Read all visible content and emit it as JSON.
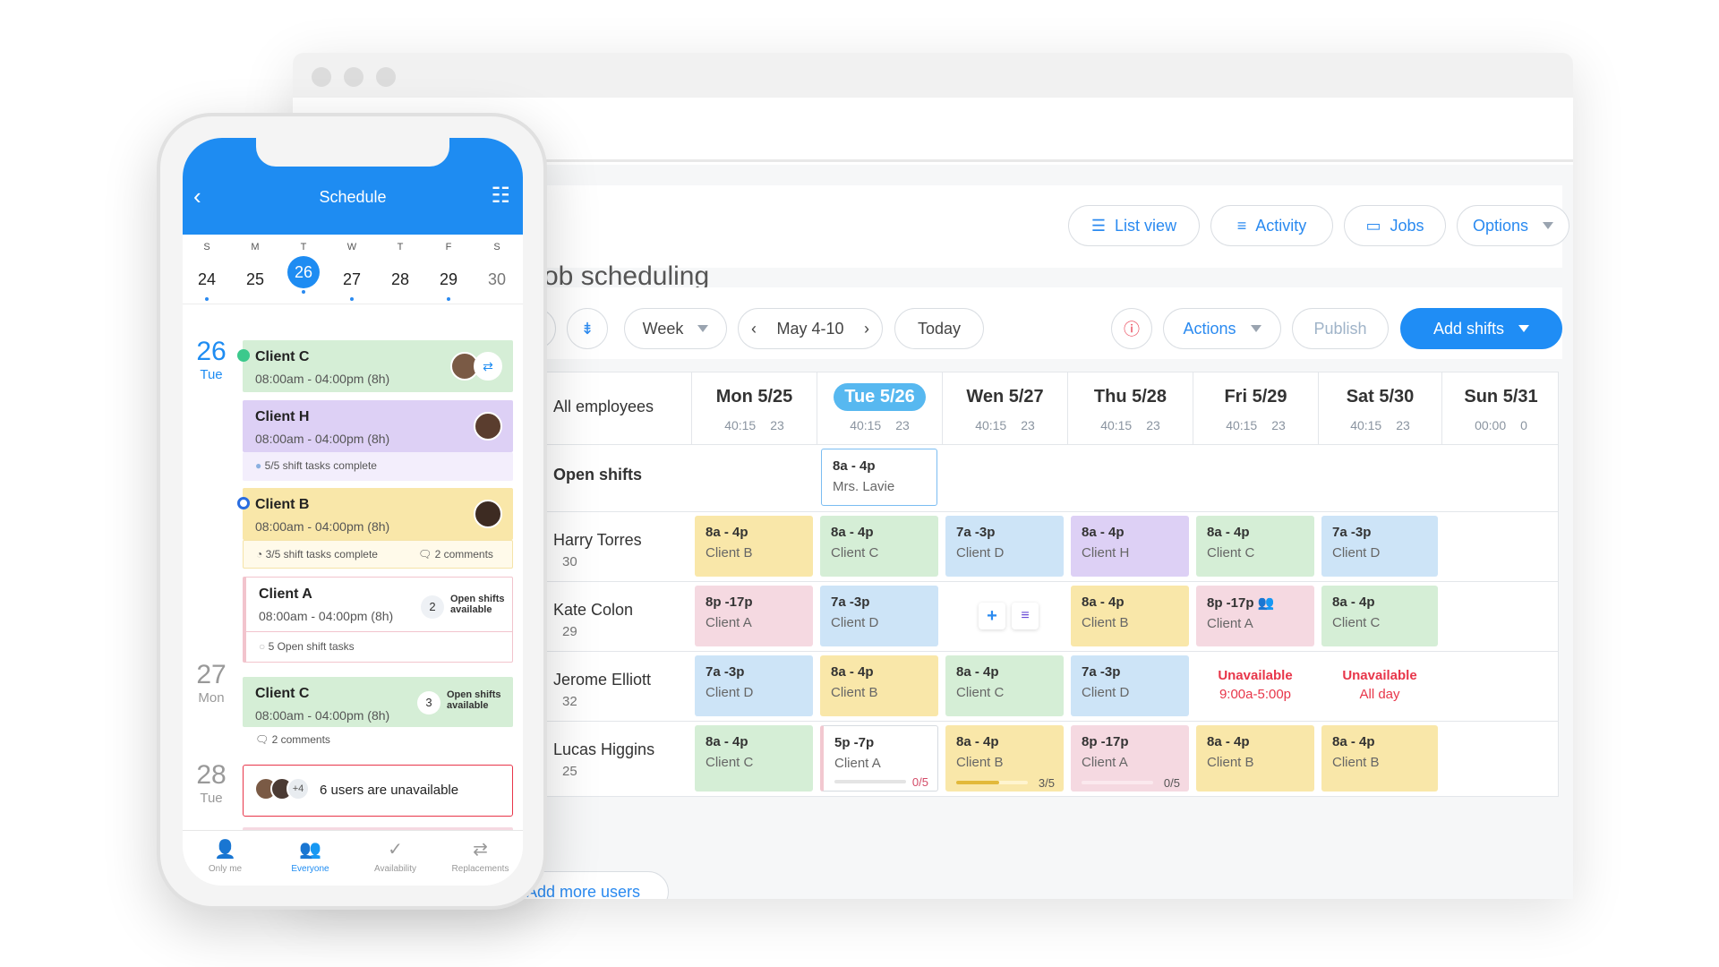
{
  "web": {
    "page_title": "Job scheduling",
    "header_buttons": {
      "list_view": "List view",
      "activity": "Activity",
      "jobs": "Jobs",
      "options": "Options"
    },
    "toolbar": {
      "view": "Week",
      "range": "May 4-10",
      "today": "Today",
      "actions": "Actions",
      "publish": "Publish",
      "add_shifts": "Add shifts"
    },
    "employees_filter": "All employees",
    "days": [
      {
        "label": "Mon 5/25",
        "hours": "40:15",
        "count": "23"
      },
      {
        "label": "Tue 5/26",
        "hours": "40:15",
        "count": "23"
      },
      {
        "label": "Wen 5/27",
        "hours": "40:15",
        "count": "23"
      },
      {
        "label": "Thu 5/28",
        "hours": "40:15",
        "count": "23"
      },
      {
        "label": "Fri  5/29",
        "hours": "40:15",
        "count": "23"
      },
      {
        "label": "Sat 5/30",
        "hours": "40:15",
        "count": "23"
      },
      {
        "label": "Sun 5/31",
        "hours": "00:00",
        "count": "0"
      }
    ],
    "open_shifts_label": "Open shifts",
    "open_shift": {
      "time": "8a - 4p",
      "client": "Mrs. Lavie"
    },
    "employees": [
      {
        "name": "Harry Torres",
        "hours": "30"
      },
      {
        "name": "Kate Colon",
        "hours": "29"
      },
      {
        "name": "Jerome Elliott",
        "hours": "32"
      },
      {
        "name": "Lucas Higgins",
        "hours": "25"
      }
    ],
    "shifts": {
      "r0": [
        {
          "time": "8a - 4p",
          "client": "Client B"
        },
        {
          "time": "8a - 4p",
          "client": "Client C"
        },
        {
          "time": "7a -3p",
          "client": "Client D"
        },
        {
          "time": "8a - 4p",
          "client": "Client H"
        },
        {
          "time": "8a - 4p",
          "client": "Client C"
        },
        {
          "time": "7a -3p",
          "client": "Client D"
        }
      ],
      "r1": [
        {
          "time": "8p -17p",
          "client": "Client A"
        },
        {
          "time": "7a -3p",
          "client": "Client D"
        },
        {
          "time": "8a - 4p",
          "client": "Client B"
        },
        {
          "time": "8p -17p",
          "client": "Client A"
        },
        {
          "time": "8a - 4p",
          "client": "Client C"
        }
      ],
      "r2": [
        {
          "time": "7a -3p",
          "client": "Client D"
        },
        {
          "time": "8a - 4p",
          "client": "Client B"
        },
        {
          "time": "8a - 4p",
          "client": "Client C"
        },
        {
          "time": "7a -3p",
          "client": "Client D"
        }
      ],
      "r3": [
        {
          "time": "8a - 4p",
          "client": "Client C"
        },
        {
          "time": "5p -7p",
          "client": "Client A",
          "progress": "0/5"
        },
        {
          "time": "8a - 4p",
          "client": "Client B",
          "progress": "3/5"
        },
        {
          "time": "8p -17p",
          "client": "Client A",
          "progress": "0/5"
        },
        {
          "time": "8a - 4p",
          "client": "Client B"
        },
        {
          "time": "8a - 4p",
          "client": "Client B"
        }
      ]
    },
    "progress_fraction": {
      "tue": 0,
      "wed": 0.6,
      "thu": 0
    },
    "unavailable": [
      {
        "title": "Unavailable",
        "detail": "9:00a-5:00p"
      },
      {
        "title": "Unavailable",
        "detail": "All day"
      }
    ],
    "add_more_users": "Add more users"
  },
  "phone": {
    "title": "Schedule",
    "week": [
      {
        "l": "S",
        "n": "24",
        "dot": true
      },
      {
        "l": "M",
        "n": "25",
        "dot": false
      },
      {
        "l": "T",
        "n": "26",
        "dot": true,
        "selected": true
      },
      {
        "l": "W",
        "n": "27",
        "dot": true
      },
      {
        "l": "T",
        "n": "28",
        "dot": false
      },
      {
        "l": "F",
        "n": "29",
        "dot": true
      },
      {
        "l": "S",
        "n": "30",
        "dot": false
      }
    ],
    "dates": [
      {
        "n": "26",
        "w": "Tue"
      },
      {
        "n": "27",
        "w": "Mon"
      },
      {
        "n": "28",
        "w": "Tue"
      }
    ],
    "cards": {
      "c1": {
        "name": "Client C",
        "time": "08:00am - 04:00pm (8h)"
      },
      "c2": {
        "name": "Client H",
        "time": "08:00am - 04:00pm (8h)",
        "foot": "5/5 shift tasks complete"
      },
      "c3": {
        "name": "Client B",
        "time": "08:00am - 04:00pm (8h)",
        "foot": "3/5 shift tasks complete",
        "comments": "2 comments"
      },
      "c4": {
        "name": "Client A",
        "time": "08:00am - 04:00pm (8h)",
        "open_count": "2",
        "open_text_1": "Open shifts",
        "open_text_2": "available",
        "foot": "5 Open shift tasks"
      },
      "c5": {
        "name": "Client C",
        "time": "08:00am - 04:00pm (8h)",
        "open_count": "3",
        "open_text_1": "Open shifts",
        "open_text_2": "available",
        "foot": "2 comments"
      },
      "c6": {
        "extra": "+4",
        "text": "6 users are unavailable"
      }
    },
    "tabs": [
      "Only me",
      "Everyone",
      "Availability",
      "Replacements"
    ]
  },
  "colors": {
    "accent": "#1f8df5",
    "green": "#d5eed6",
    "yellow": "#f9e7a9",
    "blue": "#cde4f7",
    "purple": "#ddd0f5",
    "pink": "#f5d9e1",
    "unavailable": "#e8364a"
  }
}
